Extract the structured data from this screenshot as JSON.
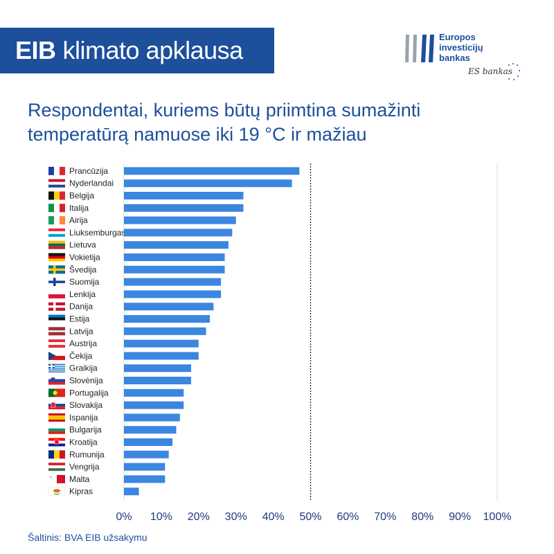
{
  "header": {
    "title_bold": "EIB",
    "title_rest": "klimato apklausa"
  },
  "logo": {
    "line1": "Europos",
    "line2": "investicijų",
    "line3": "bankas",
    "tagline": "ES bankas",
    "colors": {
      "blue": "#1d4f9b",
      "gray": "#9aa3ad"
    }
  },
  "subtitle": {
    "line1": "Respondentai, kuriems būtų priimtina sumažinti",
    "line2": "temperatūrą namuose iki 19 °C ir mažiau"
  },
  "source": "Šaltinis: BVA EIB užsakymu",
  "chart_data": {
    "type": "bar",
    "orientation": "horizontal",
    "categories": [
      "Prancūzija",
      "Nyderlandai",
      "Belgija",
      "Italija",
      "Airija",
      "Liuksemburgas",
      "Lietuva",
      "Vokietija",
      "Švedija",
      "Suomija",
      "Lenkija",
      "Danija",
      "Estija",
      "Latvija",
      "Austrija",
      "Čekija",
      "Graikija",
      "Slovėnija",
      "Portugalija",
      "Slovakija",
      "Ispanija",
      "Bulgarija",
      "Kroatija",
      "Rumunija",
      "Vengrija",
      "Malta",
      "Kipras"
    ],
    "values": [
      47,
      45,
      32,
      32,
      30,
      29,
      28,
      27,
      27,
      26,
      26,
      24,
      23,
      22,
      20,
      20,
      18,
      18,
      16,
      16,
      15,
      14,
      13,
      12,
      11,
      11,
      4
    ],
    "xlim": [
      0,
      100
    ],
    "xticks": [
      "0%",
      "10%",
      "20%",
      "30%",
      "40%",
      "50%",
      "60%",
      "70%",
      "80%",
      "90%",
      "100%"
    ],
    "reference_line": 50,
    "grid": false,
    "bar_color": "#3b86e0",
    "flags": [
      "france-flag",
      "netherlands-flag",
      "belgium-flag",
      "italy-flag",
      "ireland-flag",
      "luxembourg-flag",
      "lithuania-flag",
      "germany-flag",
      "sweden-flag",
      "finland-flag",
      "poland-flag",
      "denmark-flag",
      "estonia-flag",
      "latvia-flag",
      "austria-flag",
      "czechia-flag",
      "greece-flag",
      "slovenia-flag",
      "portugal-flag",
      "slovakia-flag",
      "spain-flag",
      "bulgaria-flag",
      "croatia-flag",
      "romania-flag",
      "hungary-flag",
      "malta-flag",
      "cyprus-flag"
    ]
  }
}
